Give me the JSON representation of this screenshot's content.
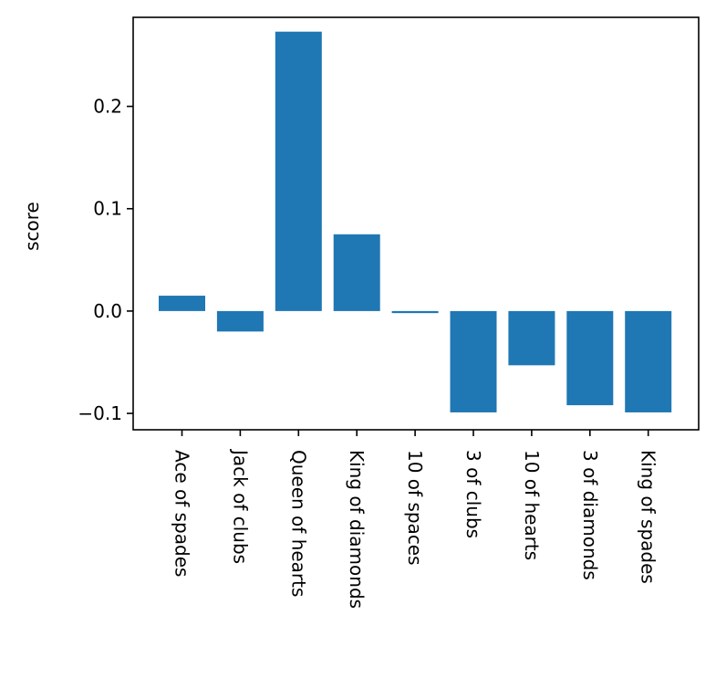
{
  "chart_data": {
    "type": "bar",
    "title": "",
    "xlabel": "",
    "ylabel": "score",
    "categories": [
      "Ace of spades",
      "Jack of clubs",
      "Queen of hearts",
      "King of diamonds",
      "10 of spaces",
      "3 of clubs",
      "10 of hearts",
      "3 of diamonds",
      "King of spades"
    ],
    "values": [
      0.015,
      -0.02,
      0.273,
      0.075,
      -0.002,
      -0.099,
      -0.053,
      -0.092,
      -0.099
    ],
    "ylim": [
      -0.116,
      0.287
    ],
    "yticks": [
      -0.1,
      0.0,
      0.1,
      0.2
    ],
    "ytick_labels": [
      "−0.1",
      "0.0",
      "0.1",
      "0.2"
    ],
    "grid": false,
    "bar_color": "#1f77b4",
    "x_tick_rotation": "vertical"
  }
}
